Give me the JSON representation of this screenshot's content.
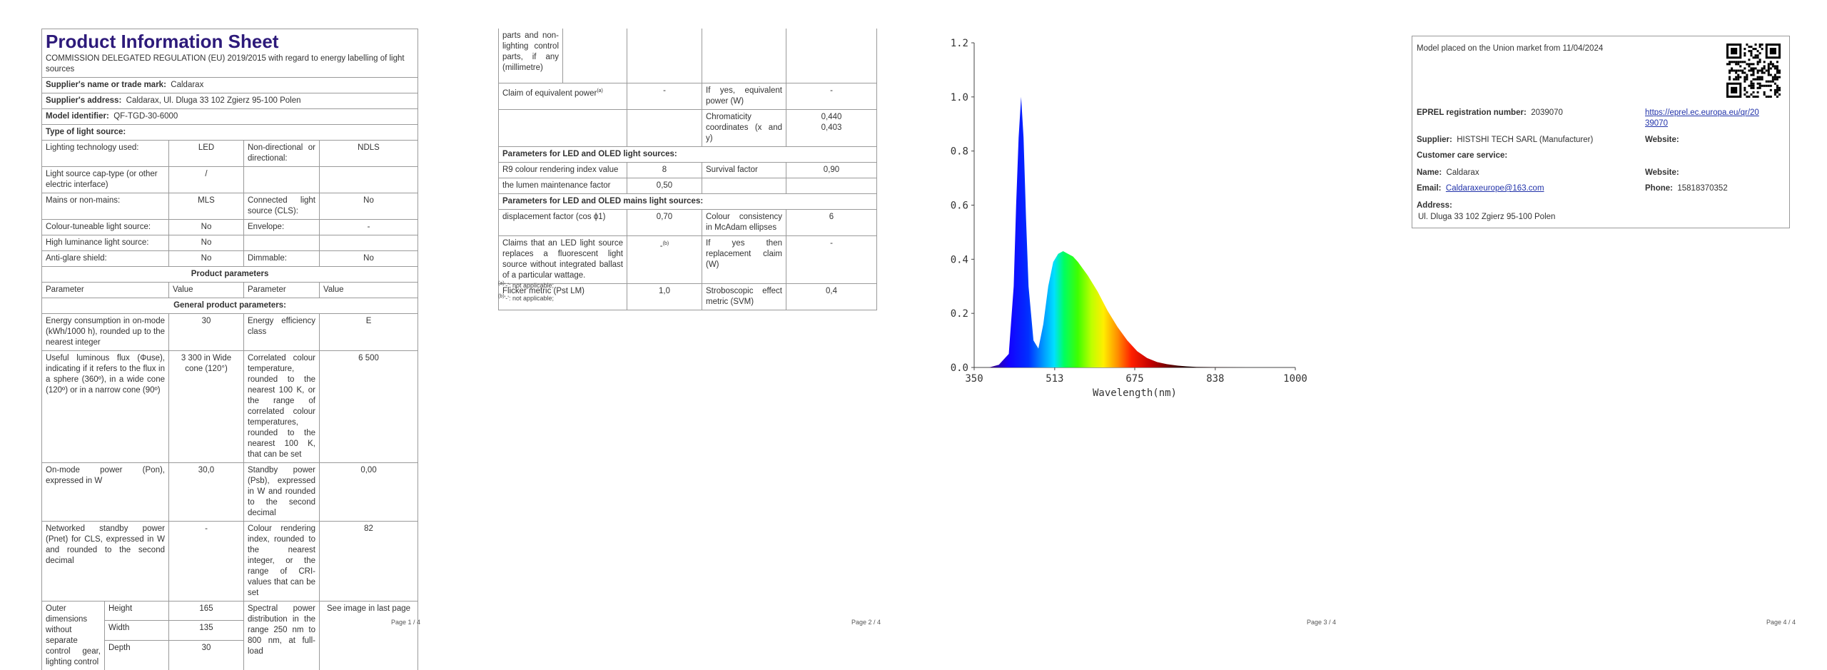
{
  "page1": {
    "title": "Product Information Sheet",
    "subtitle": "COMMISSION DELEGATED REGULATION (EU) 2019/2015 with regard to energy labelling of light sources",
    "supplier_name_label": "Supplier's name or trade mark:",
    "supplier_name": "Caldarax",
    "supplier_address_label": "Supplier's address:",
    "supplier_address": "Caldarax, Ul. Dluga 33 102 Zgierz 95-100 Polen",
    "model_label": "Model identifier:",
    "model": "QF-TGD-30-6000",
    "type_heading": "Type of light source:",
    "type_rows": [
      {
        "l1": "Lighting technology used:",
        "v1": "LED",
        "l2": "Non-directional or directional:",
        "v2": "NDLS"
      },
      {
        "l1": "Light source cap-type (or other electric interface)",
        "v1": "/",
        "l2": "",
        "v2": ""
      },
      {
        "l1": "Mains or non-mains:",
        "v1": "MLS",
        "l2": "Connected light source (CLS):",
        "v2": "No"
      },
      {
        "l1": "Colour-tuneable light source:",
        "v1": "No",
        "l2": "Envelope:",
        "v2": "-"
      },
      {
        "l1": "High luminance light source:",
        "v1": "No",
        "l2": "",
        "v2": ""
      },
      {
        "l1": "Anti-glare shield:",
        "v1": "No",
        "l2": "Dimmable:",
        "v2": "No"
      }
    ],
    "product_params_heading": "Product parameters",
    "col_parameter": "Parameter",
    "col_value": "Value",
    "general_heading": "General product parameters:",
    "params": [
      {
        "l1": "Energy consumption in on-mode (kWh/1000 h), rounded up to the nearest integer",
        "v1": "30",
        "l2": "Energy efficiency class",
        "v2": "E"
      },
      {
        "l1": "Useful luminous flux (Φuse), indicating if it refers to the flux in a sphere (360º), in a wide cone (120º) or in a narrow cone (90º)",
        "v1": "3 300 in Wide cone (120°)",
        "l2": "Correlated colour temperature, rounded to the nearest 100 K, or the range of correlated colour temperatures, rounded to the nearest 100 K, that can be set",
        "v2": "6 500"
      },
      {
        "l1": "On-mode power (Pon), expressed in W",
        "v1": "30,0",
        "l2": "Standby power (Psb), expressed in W and rounded to the second decimal",
        "v2": "0,00"
      },
      {
        "l1": "Networked standby power (Pnet) for CLS, expressed in W and rounded to the second decimal",
        "v1": "-",
        "l2": "Colour rendering index, rounded to the nearest integer, or the range of CRI-values that can be set",
        "v2": "82"
      }
    ],
    "dims_label": "Outer dimensions without separate control gear, lighting control",
    "dims": [
      {
        "label": "Height",
        "value": "165"
      },
      {
        "label": "Width",
        "value": "135"
      },
      {
        "label": "Depth",
        "value": "30"
      }
    ],
    "spd_label": "Spectral power distribution in the range 250 nm to 800 nm, at full-load",
    "spd_value": "See image in last page",
    "page_num": "Page 1 / 4"
  },
  "page2": {
    "cont_label": "parts and non-lighting control parts, if any (millimetre)",
    "row_equiv": {
      "l1": "Claim of equivalent power",
      "v1": "-",
      "l2": "If yes, equivalent power (W)",
      "v2": "-"
    },
    "row_chroma": {
      "l2": "Chromaticity coordinates (x and y)",
      "v2a": "0,440",
      "v2b": "0,403"
    },
    "led_heading": "Parameters for LED and OLED light sources:",
    "row_r9": {
      "l1": "R9 colour rendering index value",
      "v1": "8",
      "l2": "Survival factor",
      "v2": "0,90"
    },
    "row_lumen": {
      "l1": "the lumen maintenance factor",
      "v1": "0,50"
    },
    "mains_heading": "Parameters for LED and OLED mains light sources:",
    "row_disp": {
      "l1": "displacement factor (cos ϕ1)",
      "v1": "0,70",
      "l2": "Colour consistency in McAdam ellipses",
      "v2": "6"
    },
    "row_claims": {
      "l1": "Claims that an LED light source replaces a fluorescent light source without integrated ballast of a particular wattage.",
      "v1": "-",
      "l2": "If yes then replacement claim (W)",
      "v2": "-"
    },
    "row_flicker": {
      "l1": "Flicker metric (Pst LM)",
      "v1": "1,0",
      "l2": "Stroboscopic effect metric (SVM)",
      "v2": "0,4"
    },
    "footnote_a": "'-': not applicable;",
    "footnote_b": "'-': not applicable;",
    "page_num": "Page 2 / 4"
  },
  "page3": {
    "page_num": "Page 3 / 4"
  },
  "chart_data": {
    "type": "area",
    "title": "",
    "xlabel": "Wavelength(nm)",
    "ylabel": "",
    "xlim": [
      350,
      1000
    ],
    "ylim": [
      0.0,
      1.2
    ],
    "x_ticks": [
      "350",
      "513",
      "675",
      "838",
      "1000"
    ],
    "y_ticks": [
      "0.0",
      "0.2",
      "0.4",
      "0.6",
      "0.8",
      "1.0",
      "1.2"
    ],
    "grid": false,
    "series": [
      {
        "x": [
          350,
          380,
          400,
          420,
          430,
          435,
          440,
          445,
          450,
          455,
          460,
          470,
          480,
          490,
          500,
          510,
          520,
          530,
          540,
          550,
          560,
          580,
          600,
          620,
          640,
          660,
          680,
          700,
          720,
          740,
          760,
          780,
          800,
          850,
          900,
          950,
          1000
        ],
        "y": [
          0.0,
          0.0,
          0.01,
          0.05,
          0.3,
          0.6,
          0.85,
          1.0,
          0.85,
          0.55,
          0.3,
          0.1,
          0.07,
          0.16,
          0.3,
          0.39,
          0.42,
          0.43,
          0.42,
          0.41,
          0.39,
          0.34,
          0.28,
          0.21,
          0.15,
          0.1,
          0.06,
          0.035,
          0.02,
          0.012,
          0.007,
          0.004,
          0.002,
          0.001,
          0.0,
          0.0,
          0.0
        ]
      }
    ]
  },
  "page4": {
    "placed_on_market": "Model placed on the Union market from 11/04/2024",
    "eprel_label": "EPREL registration number:",
    "eprel_value": "2039070",
    "eprel_link_1": "https://eprel.ec.europa.eu/qr/20",
    "eprel_link_2": "39070",
    "supplier_label": "Supplier:",
    "supplier_value": "HISTSHI TECH SARL (Manufacturer)",
    "website_label": "Website:",
    "customer_care": "Customer care service:",
    "name_label": "Name:",
    "name_value": "Caldarax",
    "website2_label": "Website:",
    "email_label": "Email:",
    "email_value": "Caldaraxeurope@163.com",
    "phone_label": "Phone:",
    "phone_value": "15818370352",
    "address_label": "Address:",
    "address_value": "Ul. Dluga 33 102 Zgierz 95-100 Polen",
    "page_num": "Page 4 / 4"
  }
}
